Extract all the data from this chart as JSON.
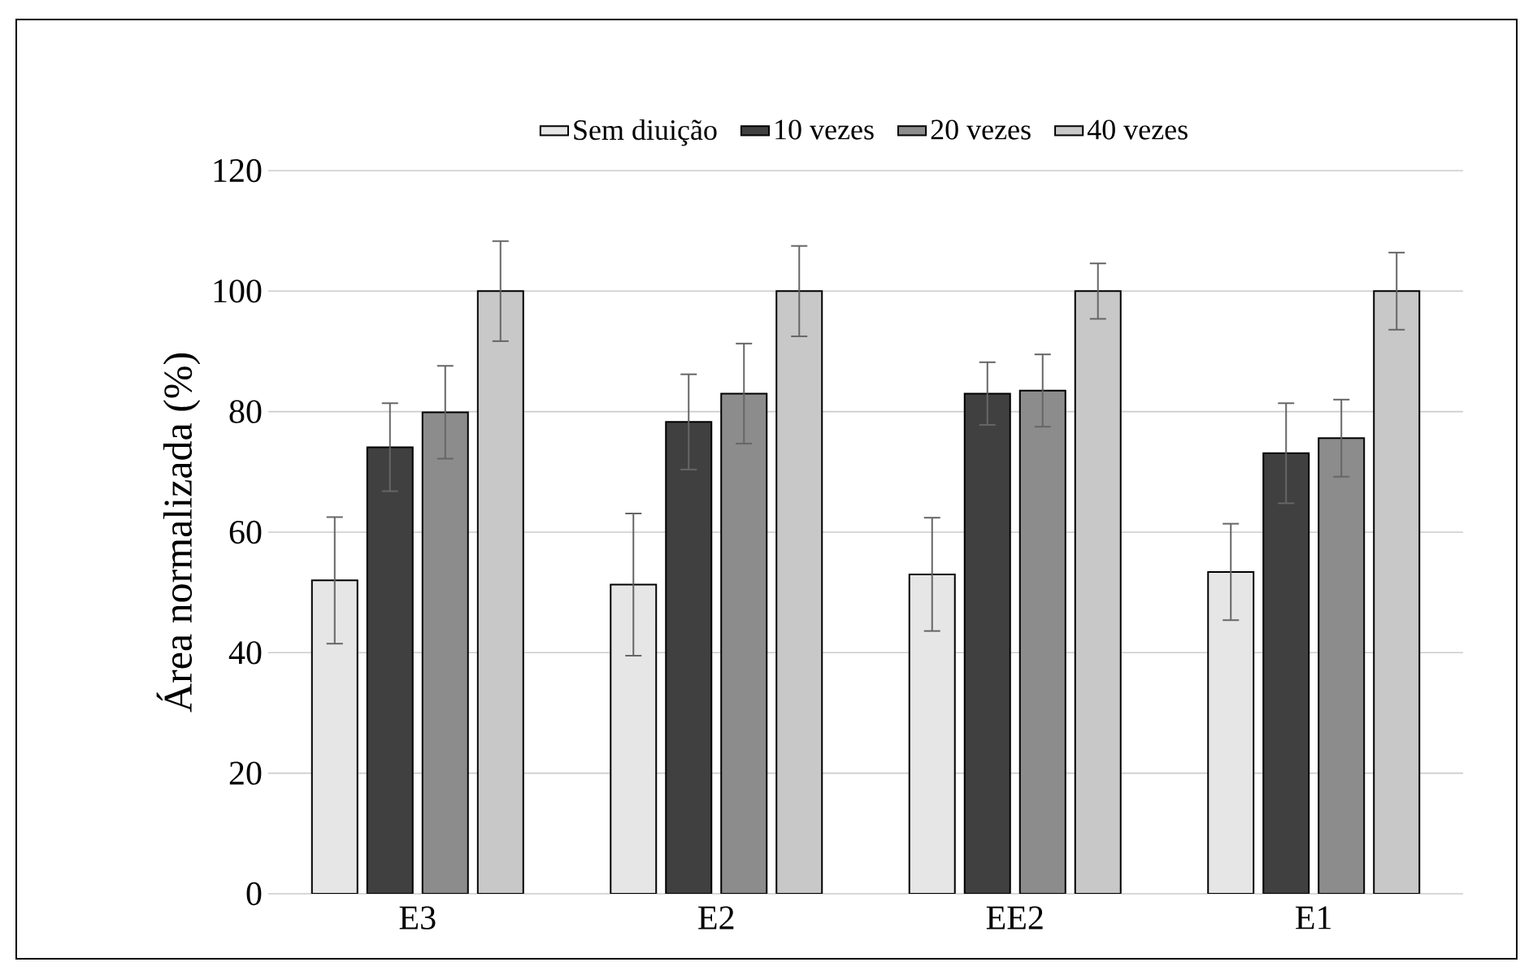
{
  "chart_data": {
    "type": "bar",
    "ylabel": "Área normalizada (%)",
    "categories": [
      "E3",
      "E2",
      "EE2",
      "E1"
    ],
    "series": [
      {
        "name": "Sem diuição",
        "color": "#e6e6e6",
        "values": [
          52,
          51.3,
          53,
          53.4
        ],
        "errors": [
          10.5,
          11.8,
          9.4,
          8
        ]
      },
      {
        "name": "10 vezes",
        "color": "#404040",
        "values": [
          74.1,
          78.3,
          83,
          73.1
        ],
        "errors": [
          7.3,
          7.9,
          5.2,
          8.3
        ]
      },
      {
        "name": "20 vezes",
        "color": "#8c8c8c",
        "values": [
          79.9,
          83,
          83.5,
          75.6
        ],
        "errors": [
          7.7,
          8.3,
          6,
          6.4
        ]
      },
      {
        "name": "40 vezes",
        "color": "#c8c8c8",
        "values": [
          100,
          100,
          100,
          100
        ],
        "errors": [
          8.3,
          7.5,
          4.6,
          6.4
        ]
      }
    ],
    "ylim": [
      0,
      120
    ],
    "yticks": [
      0,
      20,
      40,
      60,
      80,
      100,
      120
    ],
    "grid": "y",
    "legend": "top"
  }
}
